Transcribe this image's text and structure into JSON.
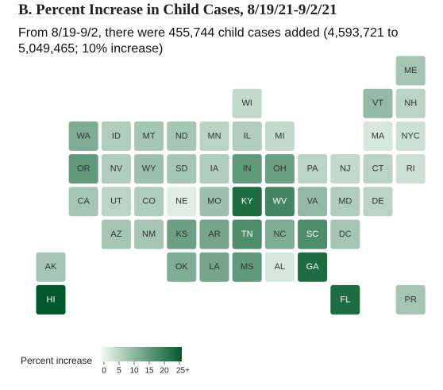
{
  "title": "B. Percent Increase in Child Cases, 8/19/21-9/2/21",
  "subtitle": "From 8/19-9/2, there were 455,744 child cases added (4,593,721 to 5,049,465; 10% increase)",
  "map": {
    "color_low": "#f3faf5",
    "color_high": "#00592a",
    "tiles": [
      {
        "label": "ME",
        "value": 8
      },
      {
        "label": "WI",
        "value": 5
      },
      {
        "label": "VT",
        "value": 10
      },
      {
        "label": "NH",
        "value": 6
      },
      {
        "label": "WA",
        "value": 12
      },
      {
        "label": "ID",
        "value": 7
      },
      {
        "label": "MT",
        "value": 8
      },
      {
        "label": "ND",
        "value": 8
      },
      {
        "label": "MN",
        "value": 6
      },
      {
        "label": "IL",
        "value": 7
      },
      {
        "label": "MI",
        "value": 5
      },
      {
        "label": "MA",
        "value": 3
      },
      {
        "label": "NYC",
        "value": 4
      },
      {
        "label": "OR",
        "value": 15
      },
      {
        "label": "NV",
        "value": 7
      },
      {
        "label": "WY",
        "value": 9
      },
      {
        "label": "SD",
        "value": 8
      },
      {
        "label": "IA",
        "value": 7
      },
      {
        "label": "IN",
        "value": 15
      },
      {
        "label": "OH",
        "value": 14
      },
      {
        "label": "PA",
        "value": 6
      },
      {
        "label": "NJ",
        "value": 5
      },
      {
        "label": "CT",
        "value": 6
      },
      {
        "label": "RI",
        "value": 4
      },
      {
        "label": "CA",
        "value": 8
      },
      {
        "label": "UT",
        "value": 6
      },
      {
        "label": "CO",
        "value": 7
      },
      {
        "label": "NE",
        "value": 2
      },
      {
        "label": "MO",
        "value": 9
      },
      {
        "label": "KY",
        "value": 22
      },
      {
        "label": "WV",
        "value": 18
      },
      {
        "label": "VA",
        "value": 10
      },
      {
        "label": "MD",
        "value": 7
      },
      {
        "label": "DE",
        "value": 6
      },
      {
        "label": "AZ",
        "value": 8
      },
      {
        "label": "NM",
        "value": 8
      },
      {
        "label": "KS",
        "value": 14
      },
      {
        "label": "AR",
        "value": 13
      },
      {
        "label": "TN",
        "value": 17
      },
      {
        "label": "NC",
        "value": 12
      },
      {
        "label": "SC",
        "value": 17
      },
      {
        "label": "DC",
        "value": 8
      },
      {
        "label": "AK",
        "value": 8
      },
      {
        "label": "OK",
        "value": 12
      },
      {
        "label": "LA",
        "value": 13
      },
      {
        "label": "MS",
        "value": 15
      },
      {
        "label": "AL",
        "value": 3
      },
      {
        "label": "GA",
        "value": 22
      },
      {
        "label": "HI",
        "value": 25
      },
      {
        "label": "FL",
        "value": 22
      },
      {
        "label": "PR",
        "value": 8
      }
    ]
  },
  "legend": {
    "title": "Percent increase",
    "lim": [
      0,
      25
    ],
    "ticks": [
      0,
      5,
      10,
      15,
      20,
      {
        "value": 25,
        "label": "25+"
      }
    ]
  }
}
